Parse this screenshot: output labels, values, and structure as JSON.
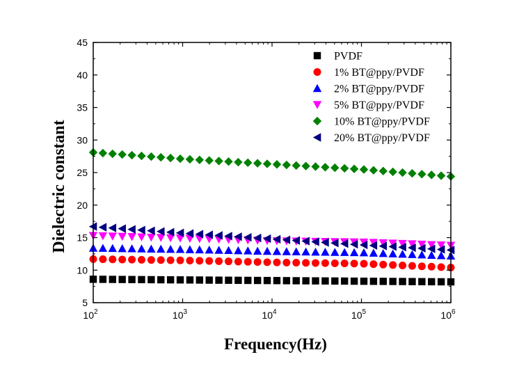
{
  "chart_data": {
    "type": "scatter",
    "xlabel": "Frequency(Hz)",
    "ylabel": "Dielectric constant",
    "xscale": "log",
    "xlim": [
      100,
      1000000
    ],
    "ylim": [
      5,
      45
    ],
    "yticks": [
      5,
      10,
      15,
      20,
      25,
      30,
      35,
      40,
      45
    ],
    "xticks": [
      {
        "base": "10",
        "exp": "2"
      },
      {
        "base": "10",
        "exp": "3"
      },
      {
        "base": "10",
        "exp": "4"
      },
      {
        "base": "10",
        "exp": "5"
      },
      {
        "base": "10",
        "exp": "6"
      }
    ],
    "legend_position": "top-right",
    "grid": false,
    "series": [
      {
        "name": "PVDF",
        "marker": "square",
        "color": "#000000",
        "x_range": [
          100,
          1000000
        ],
        "points": 38,
        "y_at_decades": [
          8.6,
          8.5,
          8.4,
          8.3,
          8.2
        ]
      },
      {
        "name": "1% BT@ppy/PVDF",
        "marker": "circle",
        "color": "#ff0000",
        "x_range": [
          100,
          1000000
        ],
        "points": 38,
        "y_at_decades": [
          11.7,
          11.5,
          11.2,
          11.0,
          10.4
        ]
      },
      {
        "name": "2% BT@ppy/PVDF",
        "marker": "triangle-up",
        "color": "#0000ff",
        "x_range": [
          100,
          1000000
        ],
        "points": 38,
        "y_at_decades": [
          13.4,
          13.2,
          12.9,
          12.7,
          12.2
        ]
      },
      {
        "name": "5% BT@ppy/PVDF",
        "marker": "triangle-down",
        "color": "#ff00ff",
        "x_range": [
          100,
          1000000
        ],
        "points": 38,
        "y_at_decades": [
          15.3,
          14.9,
          14.5,
          14.3,
          13.8
        ]
      },
      {
        "name": "10% BT@ppy/PVDF",
        "marker": "diamond",
        "color": "#008000",
        "x_range": [
          100,
          1000000
        ],
        "points": 38,
        "y_at_decades": [
          28.1,
          27.1,
          26.3,
          25.5,
          24.4
        ]
      },
      {
        "name": "20% BT@ppy/PVDF",
        "marker": "triangle-left",
        "color": "#000080",
        "x_range": [
          100,
          1000000
        ],
        "points": 38,
        "y_at_decades": [
          16.7,
          15.7,
          14.8,
          13.9,
          13.1
        ]
      }
    ]
  }
}
